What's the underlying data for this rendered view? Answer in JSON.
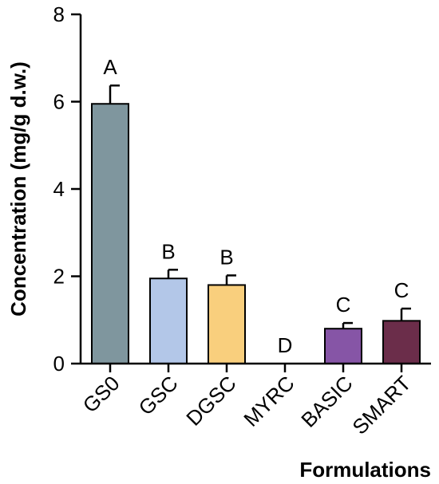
{
  "chart_data": {
    "type": "bar",
    "title": "",
    "xlabel": "Formulations",
    "ylabel": "Concentration (mg/g d.w.)",
    "ylim": [
      0,
      8
    ],
    "yticks": [
      0,
      2,
      4,
      6,
      8
    ],
    "grid": false,
    "legend": "none",
    "categories": [
      "GS0",
      "GSC",
      "DGSC",
      "MYRC",
      "BASIC",
      "SMART"
    ],
    "values": [
      5.95,
      1.95,
      1.8,
      0,
      0.8,
      0.98
    ],
    "errors": [
      0.42,
      0.2,
      0.22,
      0,
      0.13,
      0.28
    ],
    "significance": [
      "A",
      "B",
      "B",
      "D",
      "C",
      "C"
    ],
    "colors": [
      "#7f969e",
      "#b3c7e8",
      "#f9cf7d",
      "#ffffff",
      "#8655a6",
      "#6b2d4a"
    ]
  }
}
